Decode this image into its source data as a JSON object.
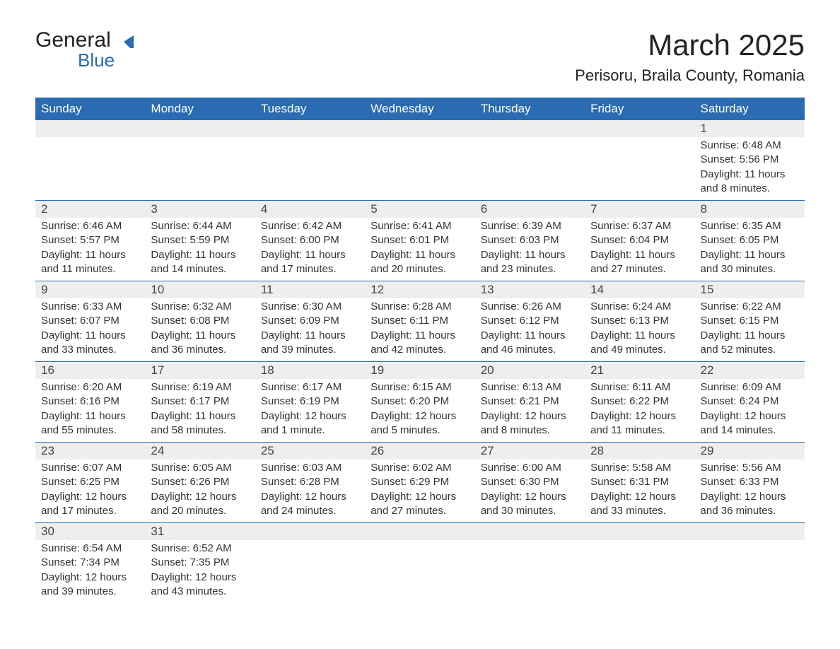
{
  "brand": {
    "word1": "General",
    "word2": "Blue"
  },
  "title": "March 2025",
  "location": "Perisoru, Braila County, Romania",
  "colors": {
    "header_bg": "#2a6bb2",
    "header_text": "#ffffff",
    "daynum_bg": "#eeeeee",
    "row_divider": "#2a6bb2",
    "body_text": "#333333",
    "page_bg": "#ffffff"
  },
  "weekdays": [
    "Sunday",
    "Monday",
    "Tuesday",
    "Wednesday",
    "Thursday",
    "Friday",
    "Saturday"
  ],
  "labels": {
    "sunrise": "Sunrise:",
    "sunset": "Sunset:",
    "daylight": "Daylight:"
  },
  "weeks": [
    [
      null,
      null,
      null,
      null,
      null,
      null,
      {
        "n": "1",
        "sr": "6:48 AM",
        "ss": "5:56 PM",
        "dl": "11 hours and 8 minutes."
      }
    ],
    [
      {
        "n": "2",
        "sr": "6:46 AM",
        "ss": "5:57 PM",
        "dl": "11 hours and 11 minutes."
      },
      {
        "n": "3",
        "sr": "6:44 AM",
        "ss": "5:59 PM",
        "dl": "11 hours and 14 minutes."
      },
      {
        "n": "4",
        "sr": "6:42 AM",
        "ss": "6:00 PM",
        "dl": "11 hours and 17 minutes."
      },
      {
        "n": "5",
        "sr": "6:41 AM",
        "ss": "6:01 PM",
        "dl": "11 hours and 20 minutes."
      },
      {
        "n": "6",
        "sr": "6:39 AM",
        "ss": "6:03 PM",
        "dl": "11 hours and 23 minutes."
      },
      {
        "n": "7",
        "sr": "6:37 AM",
        "ss": "6:04 PM",
        "dl": "11 hours and 27 minutes."
      },
      {
        "n": "8",
        "sr": "6:35 AM",
        "ss": "6:05 PM",
        "dl": "11 hours and 30 minutes."
      }
    ],
    [
      {
        "n": "9",
        "sr": "6:33 AM",
        "ss": "6:07 PM",
        "dl": "11 hours and 33 minutes."
      },
      {
        "n": "10",
        "sr": "6:32 AM",
        "ss": "6:08 PM",
        "dl": "11 hours and 36 minutes."
      },
      {
        "n": "11",
        "sr": "6:30 AM",
        "ss": "6:09 PM",
        "dl": "11 hours and 39 minutes."
      },
      {
        "n": "12",
        "sr": "6:28 AM",
        "ss": "6:11 PM",
        "dl": "11 hours and 42 minutes."
      },
      {
        "n": "13",
        "sr": "6:26 AM",
        "ss": "6:12 PM",
        "dl": "11 hours and 46 minutes."
      },
      {
        "n": "14",
        "sr": "6:24 AM",
        "ss": "6:13 PM",
        "dl": "11 hours and 49 minutes."
      },
      {
        "n": "15",
        "sr": "6:22 AM",
        "ss": "6:15 PM",
        "dl": "11 hours and 52 minutes."
      }
    ],
    [
      {
        "n": "16",
        "sr": "6:20 AM",
        "ss": "6:16 PM",
        "dl": "11 hours and 55 minutes."
      },
      {
        "n": "17",
        "sr": "6:19 AM",
        "ss": "6:17 PM",
        "dl": "11 hours and 58 minutes."
      },
      {
        "n": "18",
        "sr": "6:17 AM",
        "ss": "6:19 PM",
        "dl": "12 hours and 1 minute."
      },
      {
        "n": "19",
        "sr": "6:15 AM",
        "ss": "6:20 PM",
        "dl": "12 hours and 5 minutes."
      },
      {
        "n": "20",
        "sr": "6:13 AM",
        "ss": "6:21 PM",
        "dl": "12 hours and 8 minutes."
      },
      {
        "n": "21",
        "sr": "6:11 AM",
        "ss": "6:22 PM",
        "dl": "12 hours and 11 minutes."
      },
      {
        "n": "22",
        "sr": "6:09 AM",
        "ss": "6:24 PM",
        "dl": "12 hours and 14 minutes."
      }
    ],
    [
      {
        "n": "23",
        "sr": "6:07 AM",
        "ss": "6:25 PM",
        "dl": "12 hours and 17 minutes."
      },
      {
        "n": "24",
        "sr": "6:05 AM",
        "ss": "6:26 PM",
        "dl": "12 hours and 20 minutes."
      },
      {
        "n": "25",
        "sr": "6:03 AM",
        "ss": "6:28 PM",
        "dl": "12 hours and 24 minutes."
      },
      {
        "n": "26",
        "sr": "6:02 AM",
        "ss": "6:29 PM",
        "dl": "12 hours and 27 minutes."
      },
      {
        "n": "27",
        "sr": "6:00 AM",
        "ss": "6:30 PM",
        "dl": "12 hours and 30 minutes."
      },
      {
        "n": "28",
        "sr": "5:58 AM",
        "ss": "6:31 PM",
        "dl": "12 hours and 33 minutes."
      },
      {
        "n": "29",
        "sr": "5:56 AM",
        "ss": "6:33 PM",
        "dl": "12 hours and 36 minutes."
      }
    ],
    [
      {
        "n": "30",
        "sr": "6:54 AM",
        "ss": "7:34 PM",
        "dl": "12 hours and 39 minutes."
      },
      {
        "n": "31",
        "sr": "6:52 AM",
        "ss": "7:35 PM",
        "dl": "12 hours and 43 minutes."
      },
      null,
      null,
      null,
      null,
      null
    ]
  ]
}
